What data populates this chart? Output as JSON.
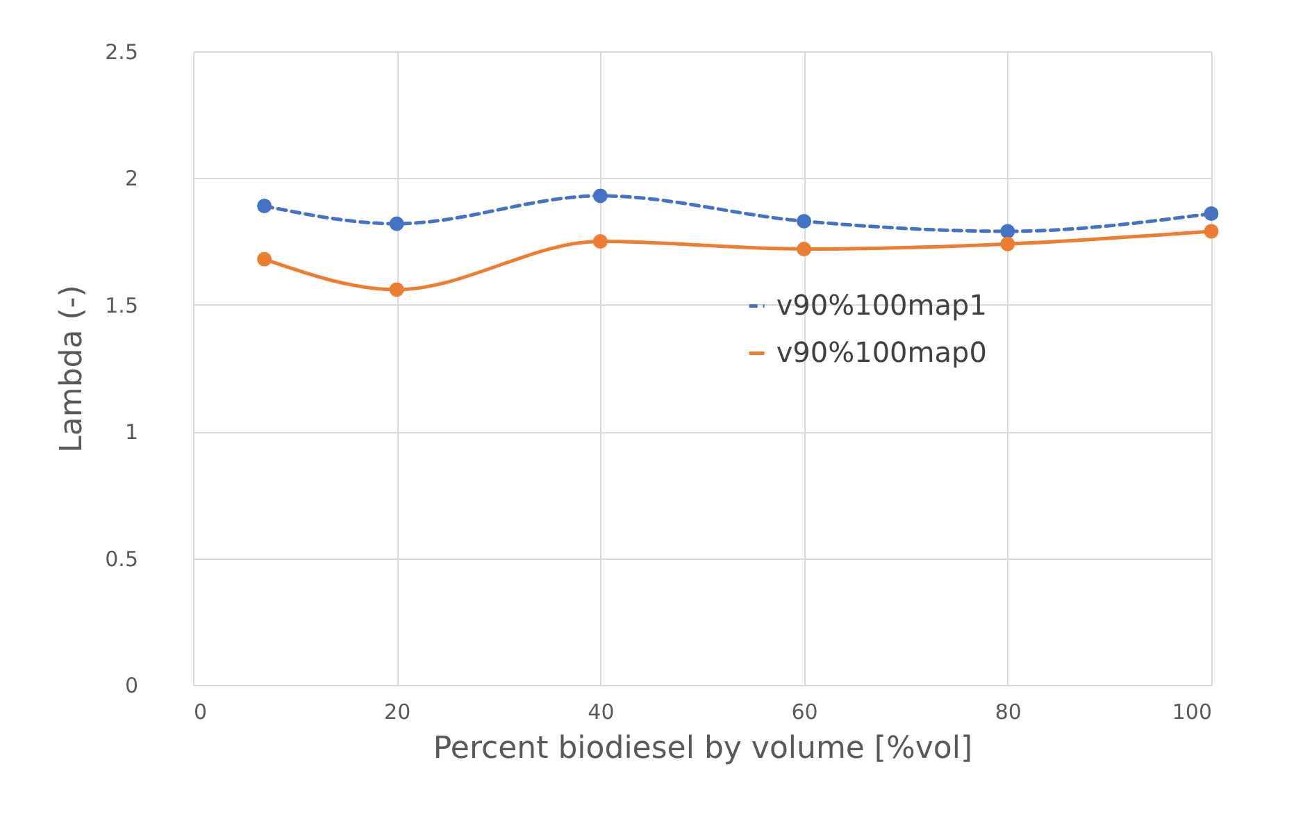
{
  "chart_data": {
    "type": "line",
    "xlabel": "Percent biodiesel by volume [%vol]",
    "ylabel": "Lambda (-)",
    "xlim": [
      0,
      100
    ],
    "xticks": [
      0,
      20,
      40,
      60,
      80,
      100
    ],
    "ylim": [
      0,
      2.5
    ],
    "yticks": [
      0,
      0.5,
      1,
      1.5,
      2,
      2.5
    ],
    "grid": true,
    "legend": "right",
    "marker": "circle",
    "series": [
      {
        "name": "v90%100map1",
        "color": "#4472c4",
        "line_style": "dashed",
        "x": [
          7,
          20,
          40,
          60,
          80,
          100
        ],
        "values": [
          1.89,
          1.82,
          1.93,
          1.83,
          1.79,
          1.86
        ]
      },
      {
        "name": "v90%100map0",
        "color": "#ed7d31",
        "line_style": "solid",
        "x": [
          7,
          20,
          40,
          60,
          80,
          100
        ],
        "values": [
          1.68,
          1.56,
          1.75,
          1.72,
          1.74,
          1.79
        ]
      }
    ]
  }
}
